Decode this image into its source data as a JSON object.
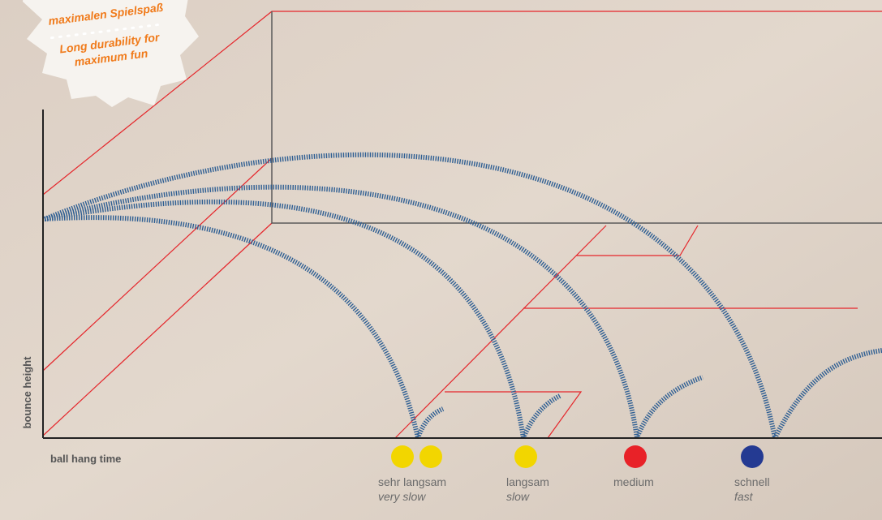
{
  "badge": {
    "lines": [
      "maximalen Spielspaß",
      "Long durability for",
      "maximum fun"
    ]
  },
  "axes": {
    "y_label": "bounce height",
    "x_label": "ball hang time"
  },
  "balls": [
    {
      "label": "sehr langsam",
      "sublabel": "very slow"
    },
    {
      "label": "langsam",
      "sublabel": "slow"
    },
    {
      "label": "medium"
    },
    {
      "label": "schnell",
      "sublabel": "fast"
    }
  ]
}
